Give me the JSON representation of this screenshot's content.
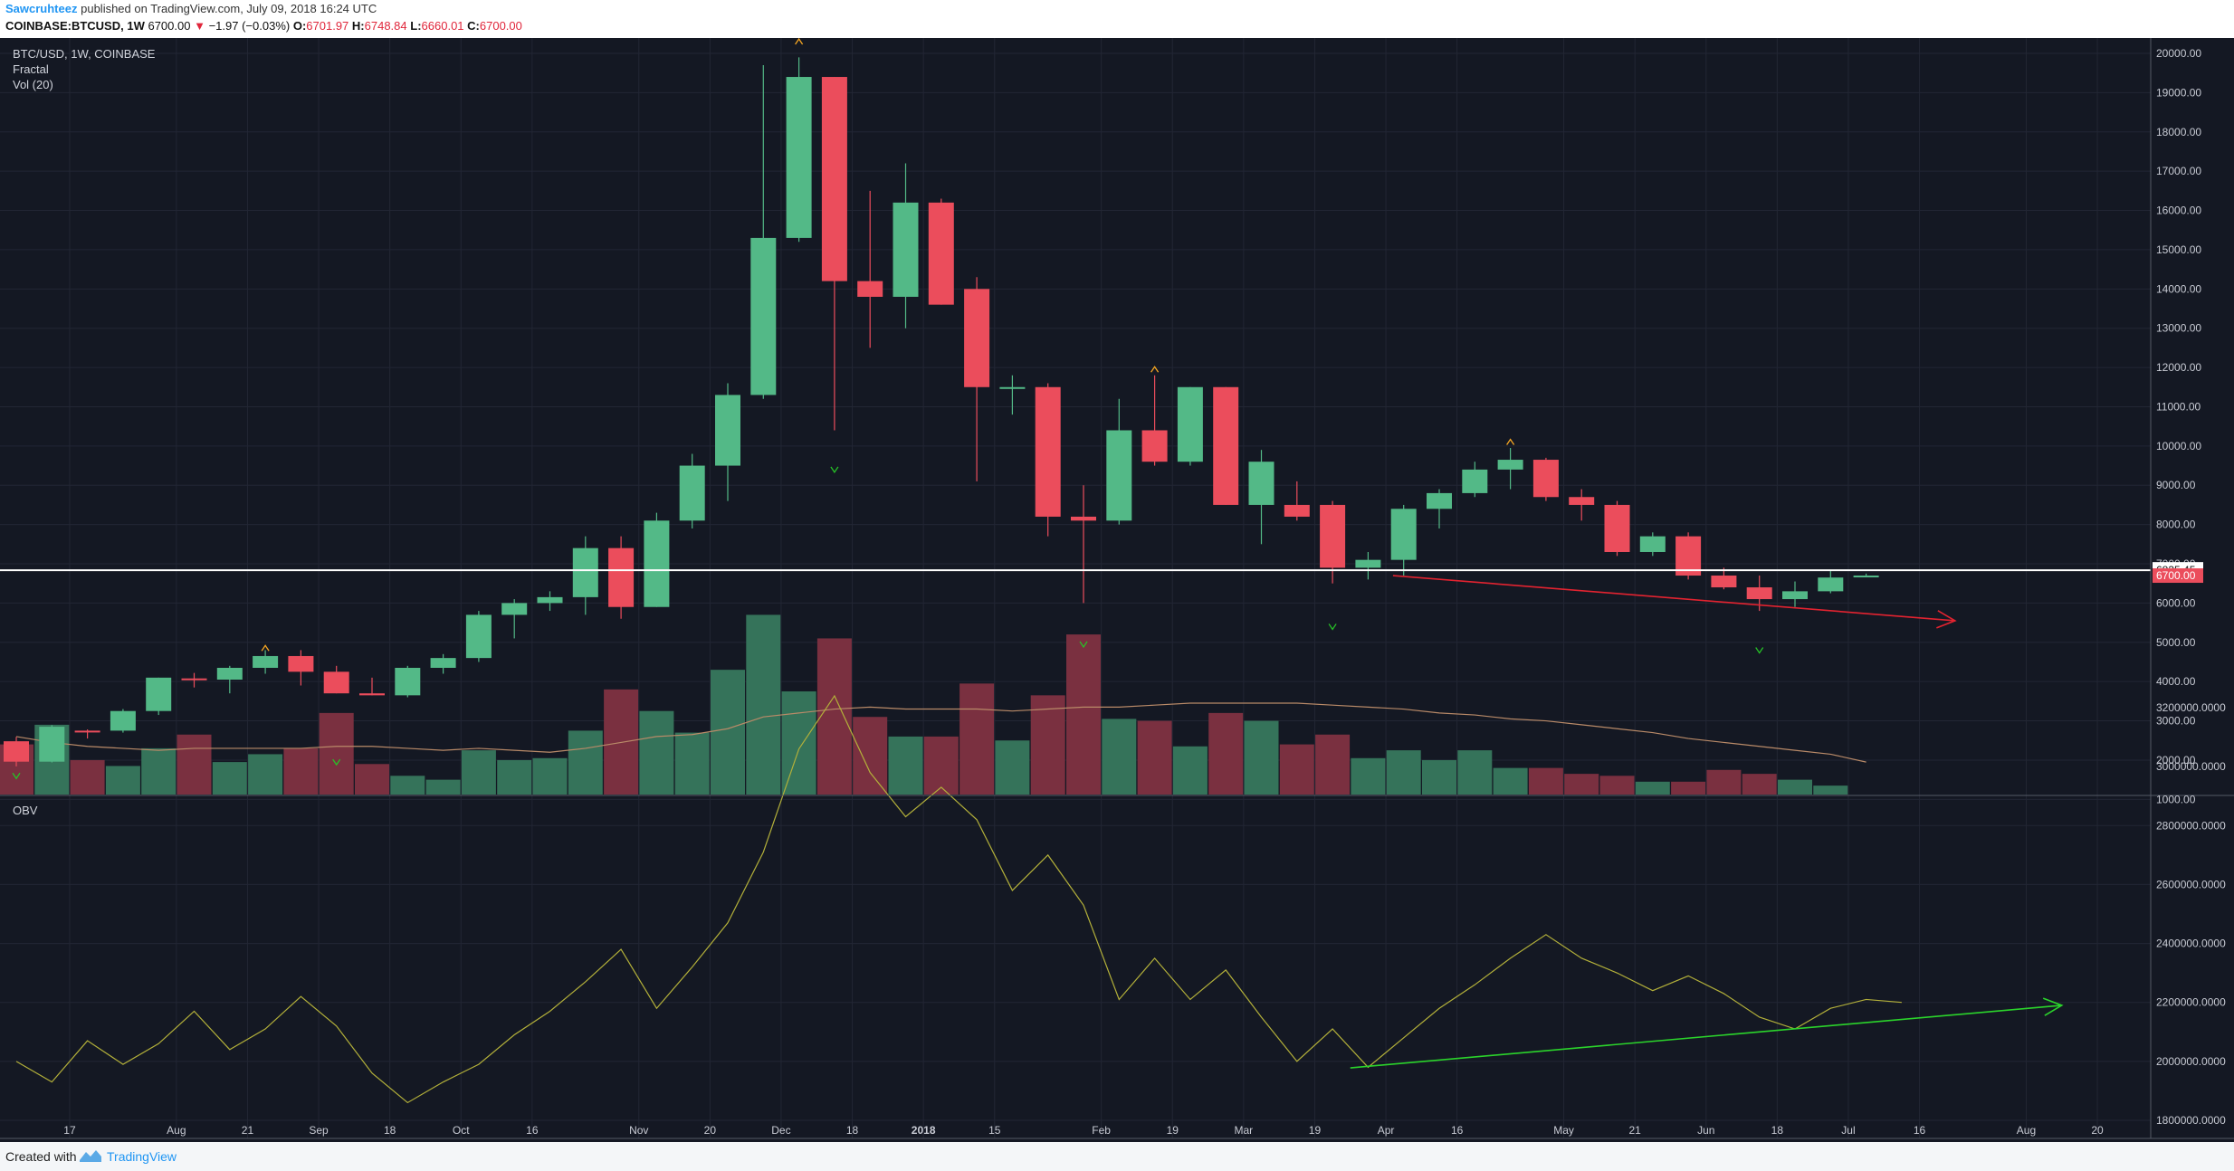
{
  "header": {
    "author": "Sawcruhteez",
    "published": "published on TradingView.com, July 09, 2018 16:24 UTC",
    "symbol": "COINBASE:BTCUSD, 1W",
    "last": "6700.00",
    "change_arrow": "▼",
    "change": "−1.97 (−0.03%)",
    "o_label": "O:",
    "o": "6701.97",
    "h_label": "H:",
    "h": "6748.84",
    "l_label": "L:",
    "l": "6660.01",
    "c_label": "C:",
    "c": "6700.00"
  },
  "legend": {
    "title": "BTC/USD, 1W, COINBASE",
    "ind1": "Fractal",
    "ind2": "Vol (20)",
    "obv": "OBV"
  },
  "footer": {
    "created": "Created with",
    "brand": "TradingView",
    "logo_icon": "tradingview-logo-icon"
  },
  "colors": {
    "background": "#141823",
    "up": "#53b987",
    "down": "#eb4d5c",
    "volume_up": "#35735a",
    "volume_down": "#7a3040",
    "obv_line": "#b3b03a",
    "volume_ma": "#b98a68",
    "fractal_up": "#f5a623",
    "fractal_down": "#26c226",
    "price_line": "#ffffff",
    "trend_red": "#e32330",
    "trend_green": "#2bd42b"
  },
  "chart_data": [
    {
      "type": "candlestick",
      "title": "BTC/USD, 1W, COINBASE",
      "ylim": [
        800,
        20600
      ],
      "yticks": [
        1000,
        2000,
        3000,
        4000,
        5000,
        6000,
        7000,
        8000,
        9000,
        10000,
        11000,
        12000,
        13000,
        14000,
        15000,
        16000,
        17000,
        18000,
        19000,
        20000
      ],
      "xlabels": [
        "17",
        "Aug",
        "21",
        "Sep",
        "18",
        "Oct",
        "16",
        "Nov",
        "20",
        "Dec",
        "18",
        "2018",
        "15",
        "Feb",
        "19",
        "Mar",
        "19",
        "Apr",
        "16",
        "May",
        "21",
        "Jun",
        "18",
        "Jul",
        "16",
        "Aug",
        "20"
      ],
      "xlabel_weeks": [
        1.5,
        4.5,
        6.5,
        8.5,
        10.5,
        12.5,
        14.5,
        17.5,
        19.5,
        21.5,
        23.5,
        25.5,
        27.5,
        30.5,
        32.5,
        34.5,
        36.5,
        38.5,
        40.5,
        43.5,
        45.5,
        47.5,
        49.5,
        51.5,
        53.5,
        56.5,
        58.5
      ],
      "candles": [
        [
          2480,
          2590,
          1840,
          1960
        ],
        [
          1960,
          2890,
          1940,
          2850
        ],
        [
          2750,
          2780,
          2550,
          2720
        ],
        [
          2750,
          3300,
          2700,
          3250
        ],
        [
          3250,
          4100,
          3150,
          4100
        ],
        [
          4080,
          4220,
          3850,
          4050
        ],
        [
          4050,
          4400,
          3700,
          4350
        ],
        [
          4350,
          4800,
          4200,
          4650
        ],
        [
          4650,
          4800,
          3900,
          4250
        ],
        [
          4250,
          4400,
          3700,
          3700
        ],
        [
          3700,
          4100,
          3650,
          3650
        ],
        [
          3650,
          4400,
          3600,
          4350
        ],
        [
          4350,
          4700,
          4200,
          4600
        ],
        [
          4600,
          5800,
          4500,
          5700
        ],
        [
          5700,
          6100,
          5100,
          6000
        ],
        [
          6000,
          6300,
          5800,
          6150
        ],
        [
          6150,
          7700,
          5700,
          7400
        ],
        [
          7400,
          7700,
          5600,
          5900
        ],
        [
          5900,
          8300,
          5900,
          8100
        ],
        [
          8100,
          9800,
          7900,
          9500
        ],
        [
          9500,
          11600,
          8600,
          11300
        ],
        [
          11300,
          19700,
          11200,
          15300
        ],
        [
          15300,
          19900,
          15200,
          19400
        ],
        [
          19400,
          19400,
          10400,
          14200
        ],
        [
          14200,
          16500,
          12500,
          13800
        ],
        [
          13800,
          17200,
          13000,
          16200
        ],
        [
          16200,
          16300,
          13600,
          13600
        ],
        [
          14000,
          14300,
          9100,
          11500
        ],
        [
          11500,
          11800,
          10800,
          11500
        ],
        [
          11500,
          11600,
          7700,
          8200
        ],
        [
          8200,
          9000,
          6000,
          8100
        ],
        [
          8100,
          11200,
          8000,
          10400
        ],
        [
          10400,
          11800,
          9500,
          9600
        ],
        [
          9600,
          11500,
          9500,
          11500
        ],
        [
          11500,
          11500,
          8500,
          8500
        ],
        [
          8500,
          9900,
          7500,
          9600
        ],
        [
          8500,
          9100,
          8100,
          8200
        ],
        [
          8500,
          8600,
          6500,
          6900
        ],
        [
          6900,
          7300,
          6600,
          7100
        ],
        [
          7100,
          8500,
          6700,
          8400
        ],
        [
          8400,
          8900,
          7900,
          8800
        ],
        [
          8800,
          9600,
          8700,
          9400
        ],
        [
          9400,
          9950,
          8900,
          9650
        ],
        [
          9650,
          9700,
          8600,
          8700
        ],
        [
          8700,
          8900,
          8100,
          8500
        ],
        [
          8500,
          8600,
          7200,
          7300
        ],
        [
          7300,
          7800,
          7200,
          7700
        ],
        [
          7700,
          7800,
          6600,
          6700
        ],
        [
          6700,
          6900,
          6350,
          6400
        ],
        [
          6400,
          6700,
          5800,
          6100
        ],
        [
          6100,
          6550,
          5900,
          6300
        ],
        [
          6300,
          6850,
          6250,
          6650
        ],
        [
          6700,
          6750,
          6660,
          6700
        ]
      ],
      "volume": [
        2400,
        2900,
        2000,
        1850,
        2300,
        2650,
        1950,
        2150,
        2300,
        3200,
        1900,
        1600,
        1500,
        2250,
        2000,
        2050,
        2750,
        3800,
        3250,
        2700,
        4300,
        5700,
        3750,
        5100,
        3100,
        2600,
        2600,
        3950,
        2500,
        3650,
        5200,
        3050,
        3000,
        2350,
        3200,
        3000,
        2400,
        2650,
        2050,
        2250,
        2000,
        2250,
        1800,
        1800,
        1650,
        1600,
        1450,
        1450,
        1750,
        1650,
        1500,
        1350,
        30
      ],
      "volume_ma": [
        2600,
        2450,
        2350,
        2300,
        2250,
        2300,
        2300,
        2300,
        2300,
        2350,
        2350,
        2300,
        2250,
        2300,
        2250,
        2200,
        2300,
        2450,
        2600,
        2650,
        2800,
        3100,
        3200,
        3300,
        3350,
        3300,
        3300,
        3300,
        3250,
        3300,
        3350,
        3350,
        3400,
        3450,
        3450,
        3450,
        3450,
        3400,
        3350,
        3300,
        3200,
        3150,
        3050,
        3000,
        2900,
        2800,
        2700,
        2550,
        2450,
        2350,
        2250,
        2150,
        1950
      ],
      "current_price_label": "6700.00",
      "horizontal_line_label": "6835.45",
      "horizontal_line_value": 6835.45,
      "fractals_up": [
        [
          7,
          4850
        ],
        [
          22,
          20300
        ],
        [
          32,
          11950
        ],
        [
          42,
          10100
        ]
      ],
      "fractals_down": [
        [
          0,
          1600
        ],
        [
          9,
          1950
        ],
        [
          23,
          9400
        ],
        [
          30,
          4950
        ],
        [
          37,
          5400
        ],
        [
          49,
          4800
        ]
      ],
      "trendline_red": {
        "from": [
          38.7,
          6700
        ],
        "to": [
          54.5,
          5550
        ]
      }
    },
    {
      "type": "line",
      "title": "OBV",
      "ylim": [
        1800000,
        3290000
      ],
      "yticks": [
        1800000,
        2000000,
        2200000,
        2400000,
        2600000,
        2800000,
        3000000,
        3200000
      ],
      "ytick_labels": [
        "1800000.0000",
        "2000000.0000",
        "2200000.0000",
        "2400000.0000",
        "2600000.0000",
        "2800000.0000",
        "3000000.0000",
        "3200000.0000"
      ],
      "values": [
        2000000,
        1930000,
        2070000,
        1990000,
        2060000,
        2170000,
        2040000,
        2110000,
        2220000,
        2120000,
        1960000,
        1860000,
        1930000,
        1990000,
        2090000,
        2170000,
        2270000,
        2380000,
        2180000,
        2320000,
        2470000,
        2710000,
        3060000,
        3240000,
        2980000,
        2830000,
        2930000,
        2820000,
        2580000,
        2700000,
        2530000,
        2210000,
        2350000,
        2210000,
        2310000,
        2150000,
        2000000,
        2110000,
        1980000,
        2080000,
        2180000,
        2260000,
        2350000,
        2430000,
        2350000,
        2300000,
        2240000,
        2290000,
        2230000,
        2150000,
        2110000,
        2180000,
        2210000,
        2200000
      ],
      "trendline_green": {
        "from": [
          37.5,
          1978000
        ],
        "to": [
          57.5,
          2190000
        ]
      }
    }
  ]
}
